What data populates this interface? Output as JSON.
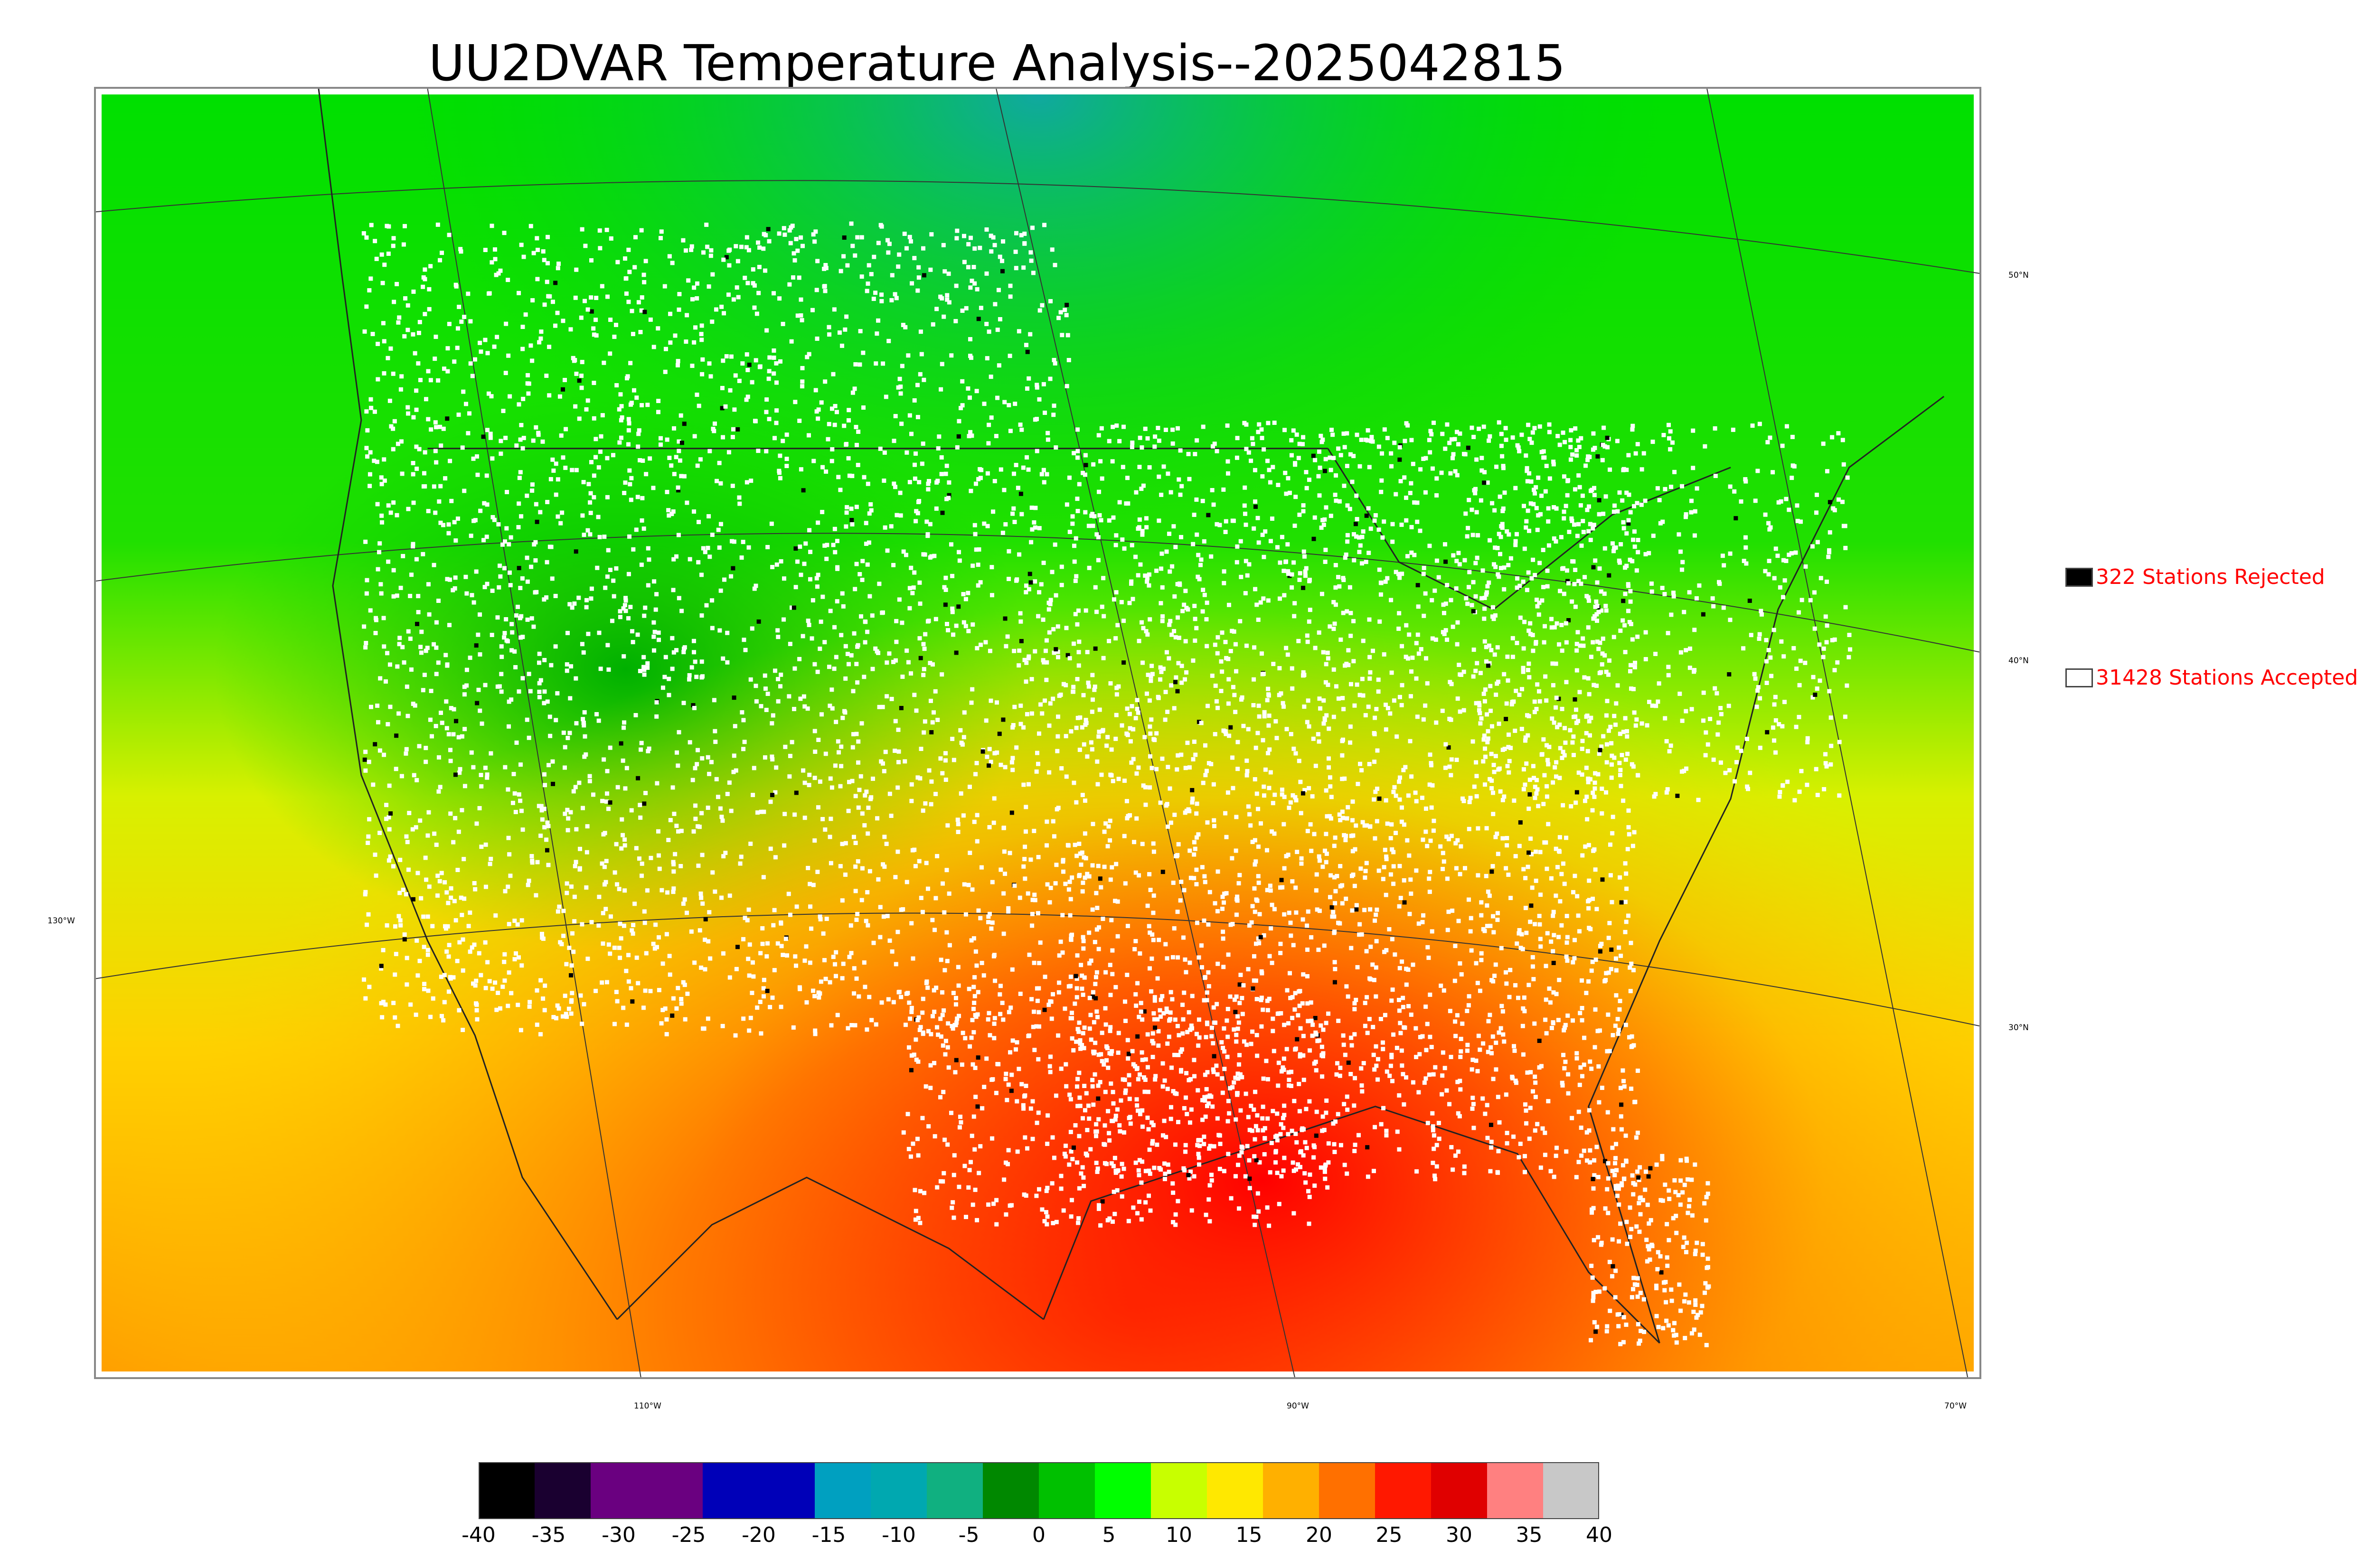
{
  "title": "UU2DVAR Temperature Analysis--2025042815",
  "map": {
    "lat_labels": [
      "50°N",
      "40°N",
      "30°N"
    ],
    "lon_labels": [
      "130°W",
      "110°W",
      "90°W",
      "70°W"
    ]
  },
  "legend": {
    "rejected": {
      "label": "322 Stations Rejected",
      "swatch": "#000000"
    },
    "accepted": {
      "label": "31428 Stations Accepted",
      "swatch": "#ffffff"
    },
    "text_color": "#ff0000"
  },
  "colorbar": {
    "ticks": [
      "-40",
      "-35",
      "-30",
      "-25",
      "-20",
      "-15",
      "-10",
      "-5",
      "0",
      "5",
      "10",
      "15",
      "20",
      "25",
      "30",
      "35",
      "40"
    ],
    "range": [
      -40,
      40
    ],
    "units_hidden": true,
    "colors": [
      "#000000",
      "#1a0030",
      "#6a0080",
      "#6a0080",
      "#0000b8",
      "#0000b8",
      "#00a0c0",
      "#00a8b0",
      "#10b080",
      "#008800",
      "#00c000",
      "#00ff00",
      "#c8ff00",
      "#ffe800",
      "#ffb000",
      "#ff7000",
      "#ff1800",
      "#e00000",
      "#ff8080",
      "#c8c8c8"
    ]
  }
}
